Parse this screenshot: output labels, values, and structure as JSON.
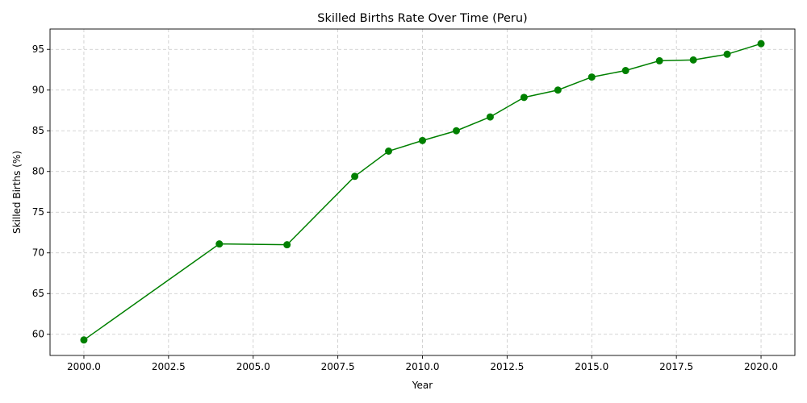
{
  "chart_data": {
    "type": "line",
    "title": "Skilled Births Rate Over Time (Peru)",
    "xlabel": "Year",
    "ylabel": "Skilled Births (%)",
    "xlim": [
      1999.0,
      2021.0
    ],
    "ylim": [
      57.4,
      97.5
    ],
    "xticks": [
      2000.0,
      2002.5,
      2005.0,
      2007.5,
      2010.0,
      2012.5,
      2015.0,
      2017.5,
      2020.0
    ],
    "xtick_labels": [
      "2000.0",
      "2002.5",
      "2005.0",
      "2007.5",
      "2010.0",
      "2012.5",
      "2015.0",
      "2017.5",
      "2020.0"
    ],
    "yticks": [
      60,
      65,
      70,
      75,
      80,
      85,
      90,
      95
    ],
    "ytick_labels": [
      "60",
      "65",
      "70",
      "75",
      "80",
      "85",
      "90",
      "95"
    ],
    "grid": true,
    "color": "#008000",
    "series": [
      {
        "x": [
          2000,
          2004,
          2006,
          2008,
          2009,
          2010,
          2011,
          2012,
          2013,
          2014,
          2015,
          2016,
          2017,
          2018,
          2019,
          2020
        ],
        "y": [
          59.3,
          71.1,
          71.0,
          79.4,
          82.5,
          83.8,
          85.0,
          86.7,
          89.1,
          90.0,
          91.6,
          92.4,
          93.6,
          93.7,
          94.4,
          95.7
        ]
      }
    ]
  }
}
